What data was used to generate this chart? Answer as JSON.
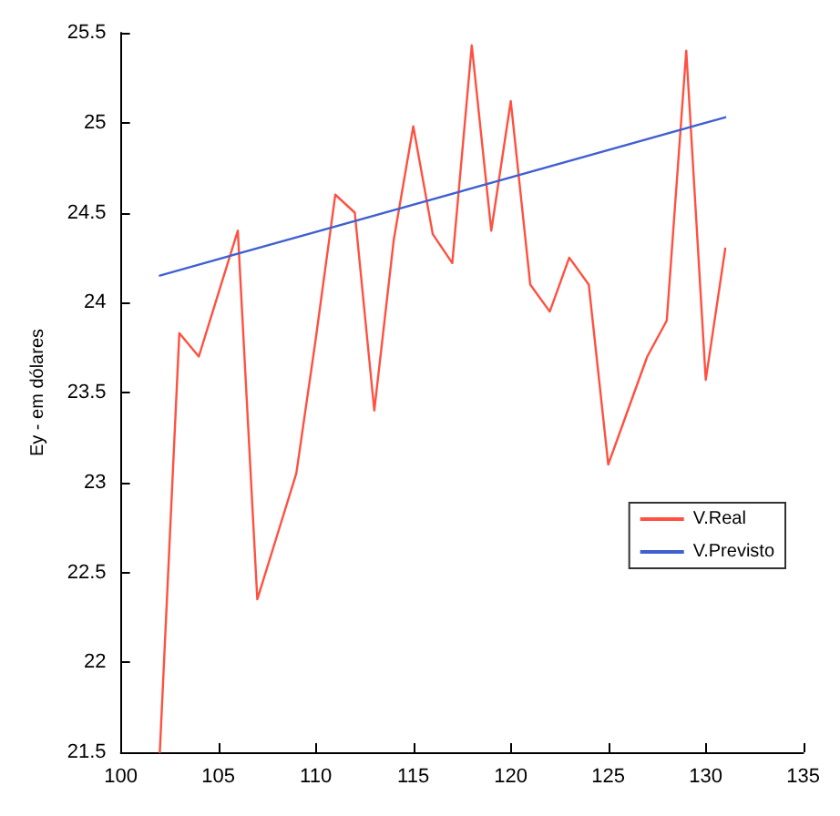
{
  "chart_data": {
    "type": "line",
    "ylabel": "Ey - em dólares",
    "xlim": [
      100,
      135
    ],
    "ylim": [
      21.5,
      25.5
    ],
    "xticks": [
      100,
      105,
      110,
      115,
      120,
      125,
      130,
      135
    ],
    "yticks": [
      21.5,
      22,
      22.5,
      23,
      23.5,
      24,
      24.5,
      25,
      25.5
    ],
    "grid": false,
    "legend": "right",
    "marker": "none",
    "line_style": "solid",
    "series": [
      {
        "name": "V.Real",
        "color": "#ff5040",
        "x": [
          102,
          103,
          104,
          105,
          106,
          107,
          108,
          109,
          110,
          111,
          112,
          113,
          114,
          115,
          116,
          117,
          118,
          119,
          120,
          121,
          122,
          123,
          124,
          125,
          126,
          127,
          128,
          129,
          130,
          131
        ],
        "values": [
          21.5,
          23.83,
          23.7,
          24.05,
          24.4,
          22.35,
          22.7,
          23.05,
          23.8,
          24.6,
          24.5,
          23.4,
          24.35,
          24.98,
          24.38,
          24.22,
          25.43,
          24.4,
          25.12,
          24.1,
          23.95,
          24.25,
          24.1,
          23.1,
          23.4,
          23.7,
          23.9,
          25.4,
          23.57,
          24.3
        ]
      },
      {
        "name": "V.Previsto",
        "color": "#4060d0",
        "x": [
          102,
          131
        ],
        "values": [
          24.15,
          25.03
        ]
      }
    ]
  }
}
